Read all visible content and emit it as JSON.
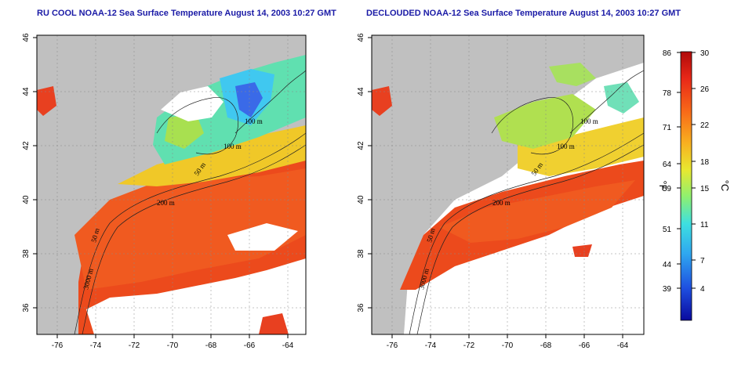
{
  "panels": [
    {
      "title": "RU COOL NOAA-12 Sea Surface Temperature August 14, 2003 10:27 GMT",
      "contour_labels": [
        "100 m",
        "100 m",
        "50 m",
        "200 m",
        "50 m",
        "3000 m"
      ]
    },
    {
      "title": "DECLOUDED NOAA-12 Sea Surface Temperature August 14, 2003 10:27 GMT",
      "contour_labels": [
        "100 m",
        "100 m",
        "50 m",
        "200 m",
        "50 m",
        "3000 m"
      ]
    }
  ],
  "axes": {
    "lat_ticks": [
      "46",
      "44",
      "42",
      "40",
      "38",
      "36"
    ],
    "lon_ticks": [
      "-76",
      "-74",
      "-72",
      "-70",
      "-68",
      "-66",
      "-64"
    ]
  },
  "colorbar": {
    "fahrenheit_ticks": [
      "86",
      "78",
      "71",
      "64",
      "59",
      "51",
      "44",
      "39"
    ],
    "celsius_ticks": [
      "30",
      "26",
      "22",
      "18",
      "15",
      "11",
      "7",
      "4"
    ],
    "fahrenheit_unit": "°F",
    "celsius_unit": "°C",
    "colors": [
      "#0a0a9e",
      "#1e4fe0",
      "#2fa8f0",
      "#3ee0e0",
      "#8ef070",
      "#e8e830",
      "#f8b020",
      "#f86818",
      "#e82818",
      "#b00a0a"
    ]
  },
  "colors": {
    "land": "#c0c0c0",
    "cloud": "#ffffff",
    "warm": "#e83a18",
    "cool": "#40d8e0"
  }
}
